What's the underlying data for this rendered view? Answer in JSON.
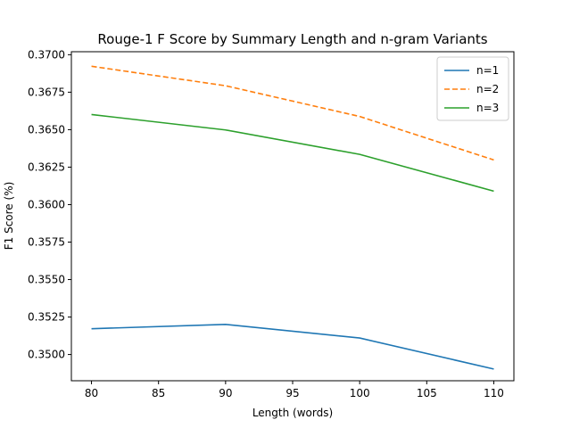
{
  "chart_data": {
    "type": "line",
    "title": "Rouge-1 F Score by Summary Length and n-gram Variants",
    "xlabel": "Length (words)",
    "ylabel": "F1 Score (%)",
    "x": [
      80,
      90,
      100,
      110
    ],
    "xlim": [
      78.5,
      111.5
    ],
    "ylim": [
      0.34825,
      0.3702
    ],
    "xticks": [
      80,
      85,
      90,
      95,
      100,
      105,
      110
    ],
    "xtick_labels": [
      "80",
      "85",
      "90",
      "95",
      "100",
      "105",
      "110"
    ],
    "yticks": [
      0.35,
      0.3525,
      0.355,
      0.3575,
      0.36,
      0.3625,
      0.365,
      0.3675,
      0.37
    ],
    "ytick_labels": [
      "0.3500",
      "0.3525",
      "0.3550",
      "0.3575",
      "0.3600",
      "0.3625",
      "0.3650",
      "0.3675",
      "0.3700"
    ],
    "grid": false,
    "legend_position": "top-right",
    "series": [
      {
        "name": "n=1",
        "values": [
          0.35172,
          0.35201,
          0.3511,
          0.34903
        ],
        "color": "#1f77b4",
        "style": "solid"
      },
      {
        "name": "n=2",
        "values": [
          0.36923,
          0.36793,
          0.36588,
          0.36298
        ],
        "color": "#ff7f0e",
        "style": "dashed"
      },
      {
        "name": "n=3",
        "values": [
          0.36601,
          0.36498,
          0.36335,
          0.3609
        ],
        "color": "#2ca02c",
        "style": "solid"
      }
    ]
  }
}
